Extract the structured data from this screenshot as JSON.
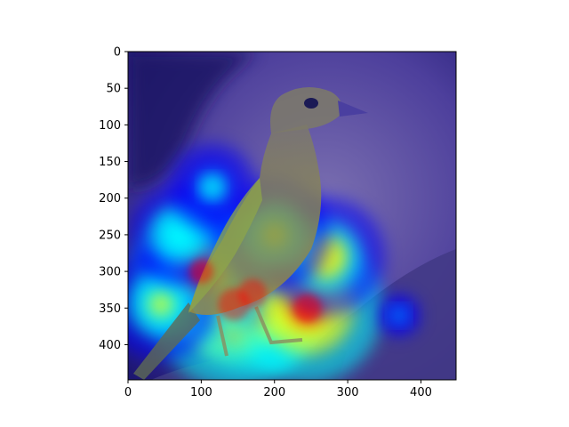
{
  "chart_data": {
    "type": "heatmap",
    "title": "",
    "xlabel": "",
    "ylabel": "",
    "xlim": [
      0,
      448
    ],
    "ylim": [
      448,
      0
    ],
    "x_ticks": [
      0,
      100,
      200,
      300,
      400
    ],
    "y_ticks": [
      0,
      50,
      100,
      150,
      200,
      250,
      300,
      350,
      400
    ],
    "x_tick_labels": [
      "0",
      "100",
      "200",
      "300",
      "400"
    ],
    "y_tick_labels": [
      "0",
      "50",
      "100",
      "150",
      "200",
      "250",
      "300",
      "350",
      "400"
    ],
    "grid": false,
    "legend": "none",
    "colormap": "jet",
    "image_content": "bird",
    "overlay_hotspots": [
      {
        "x": 145,
        "y": 345,
        "intensity": 1.0
      },
      {
        "x": 170,
        "y": 330,
        "intensity": 0.9
      },
      {
        "x": 245,
        "y": 350,
        "intensity": 0.85
      },
      {
        "x": 100,
        "y": 300,
        "intensity": 0.75
      },
      {
        "x": 270,
        "y": 280,
        "intensity": 0.6
      },
      {
        "x": 200,
        "y": 250,
        "intensity": 0.55
      },
      {
        "x": 45,
        "y": 345,
        "intensity": 0.55
      },
      {
        "x": 70,
        "y": 250,
        "intensity": 0.45
      },
      {
        "x": 115,
        "y": 185,
        "intensity": 0.35
      },
      {
        "x": 370,
        "y": 360,
        "intensity": 0.25
      }
    ]
  },
  "colors": {
    "background": "#ffffff",
    "axes": "#000000",
    "base_tint": "#3b2d9a",
    "colormap_stops": [
      "#000080",
      "#0000ff",
      "#00ffff",
      "#ffff00",
      "#ff0000"
    ]
  }
}
